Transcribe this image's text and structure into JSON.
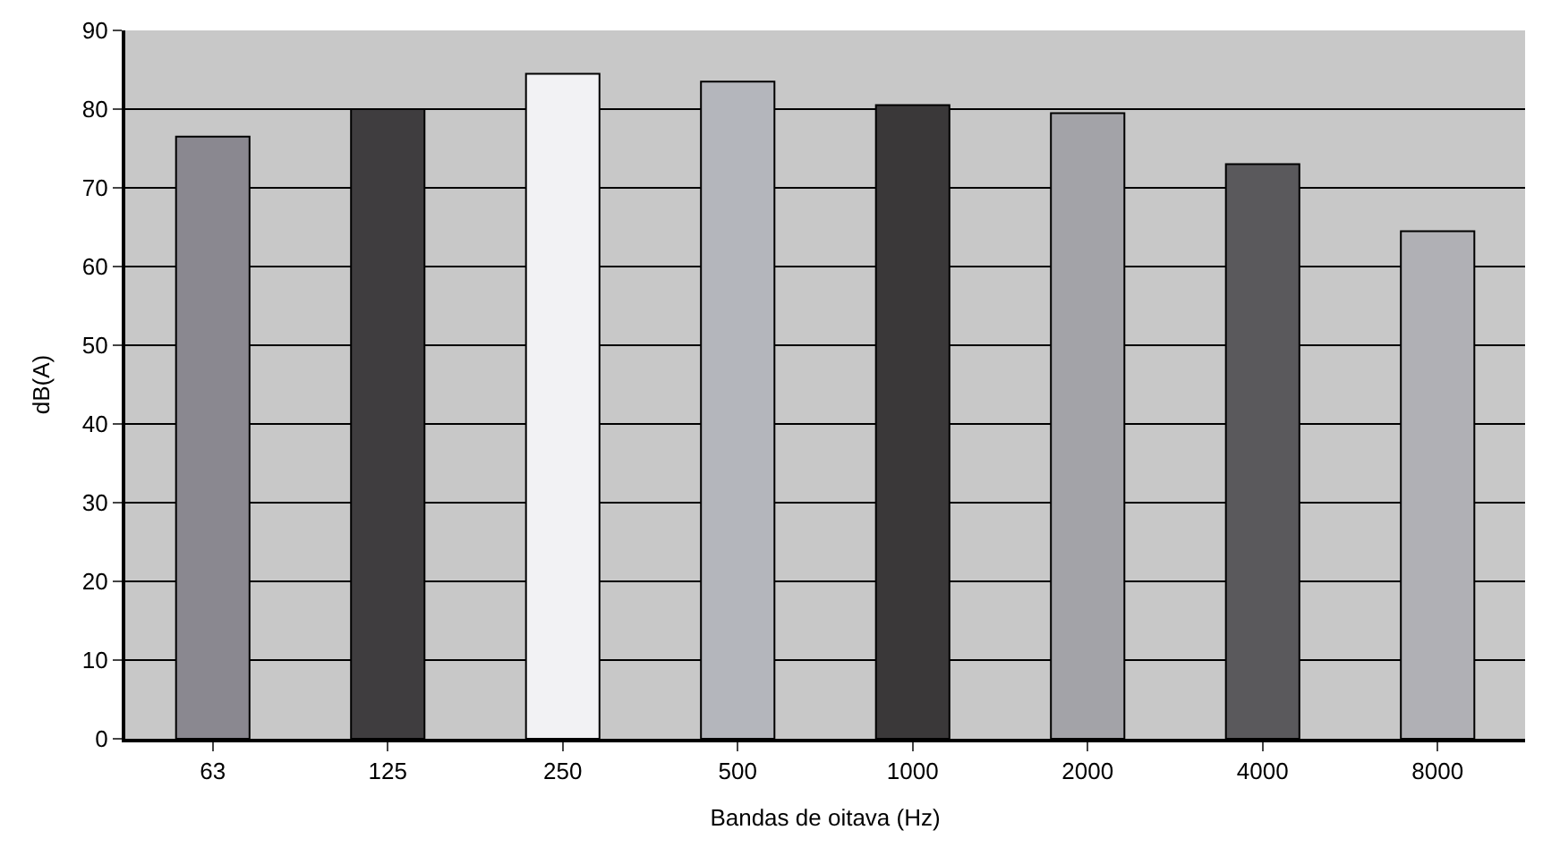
{
  "chart_data": {
    "type": "bar",
    "xlabel": "Bandas de oitava (Hz)",
    "ylabel": "dB(A)",
    "categories": [
      "63",
      "125",
      "250",
      "500",
      "1000",
      "2000",
      "4000",
      "8000"
    ],
    "values": [
      76.5,
      80,
      84.5,
      83.5,
      80.5,
      79.5,
      73,
      64.5
    ],
    "colors": [
      "#8a8890",
      "#3f3d3f",
      "#f2f2f4",
      "#b4b6bc",
      "#3a3839",
      "#a3a3a8",
      "#5a595c",
      "#b0b0b5"
    ],
    "ylim": [
      0,
      90
    ],
    "yticks": [
      0,
      10,
      20,
      30,
      40,
      50,
      60,
      70,
      80,
      90
    ],
    "grid": "y"
  }
}
